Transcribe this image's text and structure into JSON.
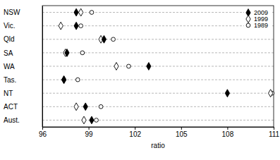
{
  "chart_data": {
    "type": "dot",
    "x_label": "ratio",
    "categories": [
      "NSW",
      "Vic.",
      "Qld",
      "SA",
      "WA",
      "Tas.",
      "NT",
      "ACT",
      "Aust."
    ],
    "series": [
      {
        "name": "2009",
        "color": "#000000",
        "marker": "diamond",
        "values": [
          98.2,
          98.2,
          100.0,
          97.6,
          102.9,
          97.4,
          108.0,
          98.8,
          99.2
        ]
      },
      {
        "name": "1999",
        "color": "#000000",
        "marker": "diamond-open",
        "values": [
          98.5,
          97.2,
          99.8,
          97.5,
          100.8,
          97.4,
          110.8,
          98.2,
          98.7
        ]
      },
      {
        "name": "1989",
        "color": "#000000",
        "marker": "circle-open",
        "values": [
          99.2,
          98.5,
          100.6,
          98.6,
          101.6,
          98.3,
          110.9,
          99.8,
          99.5
        ]
      }
    ],
    "xlim": [
      96,
      111
    ],
    "xticks": [
      96,
      99,
      102,
      105,
      108,
      111
    ],
    "grid": true,
    "legend": "top-right"
  }
}
